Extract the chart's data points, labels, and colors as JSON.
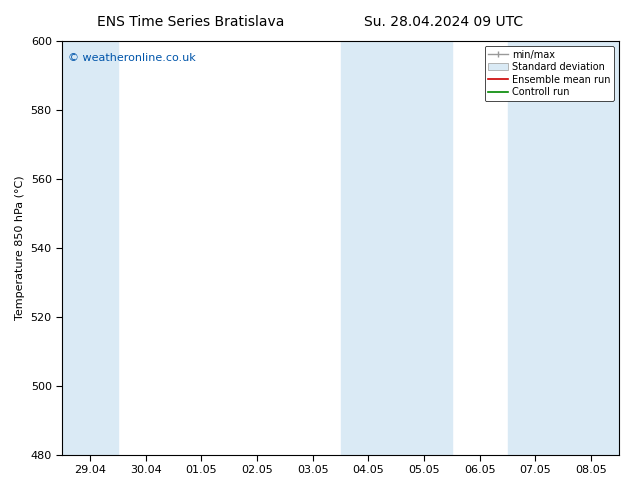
{
  "title_left": "ENS Time Series Bratislava",
  "title_right": "Su. 28.04.2024 09 UTC",
  "ylabel": "Temperature 850 hPa (°C)",
  "ylim": [
    480,
    600
  ],
  "yticks": [
    480,
    500,
    520,
    540,
    560,
    580,
    600
  ],
  "watermark": "© weatheronline.co.uk",
  "watermark_color": "#0055aa",
  "background_color": "#ffffff",
  "plot_bg_color": "#ffffff",
  "shaded_band_color": "#daeaf5",
  "legend_labels": [
    "min/max",
    "Standard deviation",
    "Ensemble mean run",
    "Controll run"
  ],
  "legend_colors_line": [
    "#999999",
    "#cccccc",
    "#cc0000",
    "#008800"
  ],
  "xtick_labels": [
    "29.04",
    "30.04",
    "01.05",
    "02.05",
    "03.05",
    "04.05",
    "05.05",
    "06.05",
    "07.05",
    "08.05"
  ],
  "shaded_day_indices": [
    0,
    5,
    6,
    8,
    9
  ],
  "title_fontsize": 10,
  "axis_fontsize": 8,
  "tick_fontsize": 8,
  "watermark_fontsize": 8,
  "legend_fontsize": 7
}
